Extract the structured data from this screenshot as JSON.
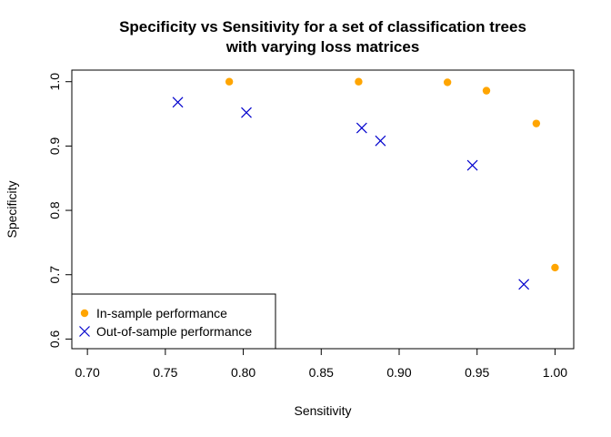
{
  "chart_data": {
    "type": "scatter",
    "title": [
      "Specificity vs Sensitivity for a set of classification trees",
      "with varying loss matrices"
    ],
    "xlabel": "Sensitivity",
    "ylabel": "Specificity",
    "xlim": [
      0.69,
      1.012
    ],
    "ylim": [
      0.585,
      1.018
    ],
    "x_ticks": [
      0.7,
      0.75,
      0.8,
      0.85,
      0.9,
      0.95,
      1.0
    ],
    "x_tick_labels": [
      "0.70",
      "0.75",
      "0.80",
      "0.85",
      "0.90",
      "0.95",
      "1.00"
    ],
    "y_ticks": [
      0.6,
      0.7,
      0.8,
      0.9,
      1.0
    ],
    "y_tick_labels": [
      "0.6",
      "0.7",
      "0.8",
      "0.9",
      "1.0"
    ],
    "grid": false,
    "legend_position": "bottom-left",
    "series": [
      {
        "name": "In-sample performance",
        "marker": "filled-circle",
        "color": "#FFA500",
        "x": [
          0.791,
          0.874,
          0.931,
          0.956,
          0.988,
          1.0
        ],
        "y": [
          1.0,
          1.0,
          0.999,
          0.986,
          0.935,
          0.711
        ]
      },
      {
        "name": "Out-of-sample performance",
        "marker": "x-cross",
        "color": "#0000CD",
        "x": [
          0.758,
          0.802,
          0.876,
          0.888,
          0.947,
          0.98
        ],
        "y": [
          0.968,
          0.952,
          0.928,
          0.908,
          0.87,
          0.685
        ]
      }
    ]
  }
}
